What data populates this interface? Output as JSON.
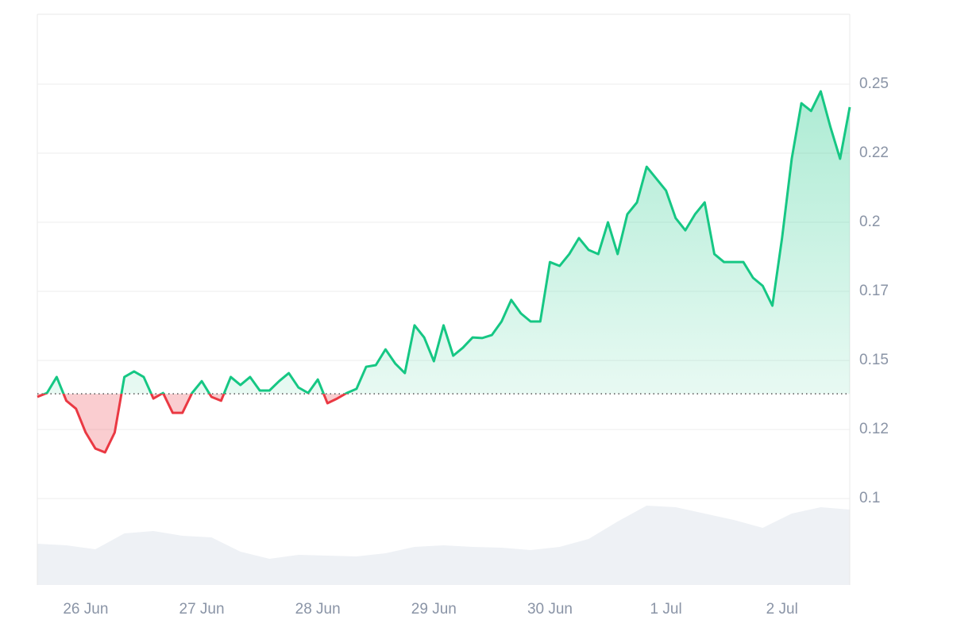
{
  "chart_data": {
    "type": "line",
    "categories": [
      null,
      null,
      null,
      null,
      null,
      "26 Jun",
      null,
      null,
      null,
      null,
      null,
      null,
      null,
      null,
      null,
      null,
      null,
      "27 Jun",
      null,
      null,
      null,
      null,
      null,
      null,
      null,
      null,
      null,
      null,
      null,
      "28 Jun",
      null,
      null,
      null,
      null,
      null,
      null,
      null,
      null,
      null,
      null,
      null,
      "29 Jun",
      null,
      null,
      null,
      null,
      null,
      null,
      null,
      null,
      null,
      null,
      null,
      "30 Jun",
      null,
      null,
      null,
      null,
      null,
      null,
      null,
      null,
      null,
      null,
      null,
      "1 Jul",
      null,
      null,
      null,
      null,
      null,
      null,
      null,
      null,
      null,
      null,
      null,
      "2 Jul",
      null,
      null,
      null,
      null,
      null,
      null,
      null
    ],
    "series": [
      {
        "values": [
          0.1368,
          0.1382,
          0.144,
          0.1354,
          0.1325,
          0.1239,
          0.1181,
          0.1167,
          0.1239,
          0.144,
          0.146,
          0.144,
          0.1362,
          0.1382,
          0.131,
          0.131,
          0.1382,
          0.1425,
          0.1368,
          0.1354,
          0.144,
          0.1411,
          0.144,
          0.1391,
          0.1391,
          0.1425,
          0.1454,
          0.1402,
          0.1382,
          0.1431,
          0.1345,
          0.1362,
          0.1382,
          0.1397,
          0.1477,
          0.1483,
          0.154,
          0.1489,
          0.1454,
          0.1627,
          0.1583,
          0.1497,
          0.1627,
          0.1517,
          0.1546,
          0.1583,
          0.1581,
          0.1592,
          0.1641,
          0.1719,
          0.167,
          0.1641,
          0.1641,
          0.1856,
          0.1842,
          0.1885,
          0.1943,
          0.19,
          0.1885,
          0.2,
          0.1885,
          0.2029,
          0.2072,
          0.2201,
          0.2158,
          0.2115,
          0.2015,
          0.1971,
          0.2029,
          0.2072,
          0.1885,
          0.1856,
          0.1856,
          0.1856,
          0.1799,
          0.177,
          0.1698,
          0.1943,
          0.223,
          0.2431,
          0.2403,
          0.2474,
          0.2345,
          0.223,
          0.2417
        ]
      }
    ],
    "baseline": 0.1379,
    "color_up": "#16c784",
    "color_down": "#ea3943",
    "ylim": [
      0.0687,
      0.2753
    ],
    "yticks": [
      0.1,
      {
        "value": 0.125,
        "label": "0.12"
      },
      0.15,
      {
        "value": 0.175,
        "label": "0.17"
      },
      0.2,
      {
        "value": 0.225,
        "label": "0.22"
      },
      0.25
    ],
    "grid": true,
    "volume": {
      "color": "#eef1f5",
      "ylim": [
        0,
        110
      ],
      "values": [
        52,
        50,
        45,
        65,
        68,
        62,
        60,
        42,
        33,
        38,
        37,
        36,
        40,
        48,
        50,
        48,
        47,
        44,
        48,
        58,
        80,
        100,
        98,
        90,
        82,
        72,
        90,
        98,
        95
      ]
    }
  }
}
